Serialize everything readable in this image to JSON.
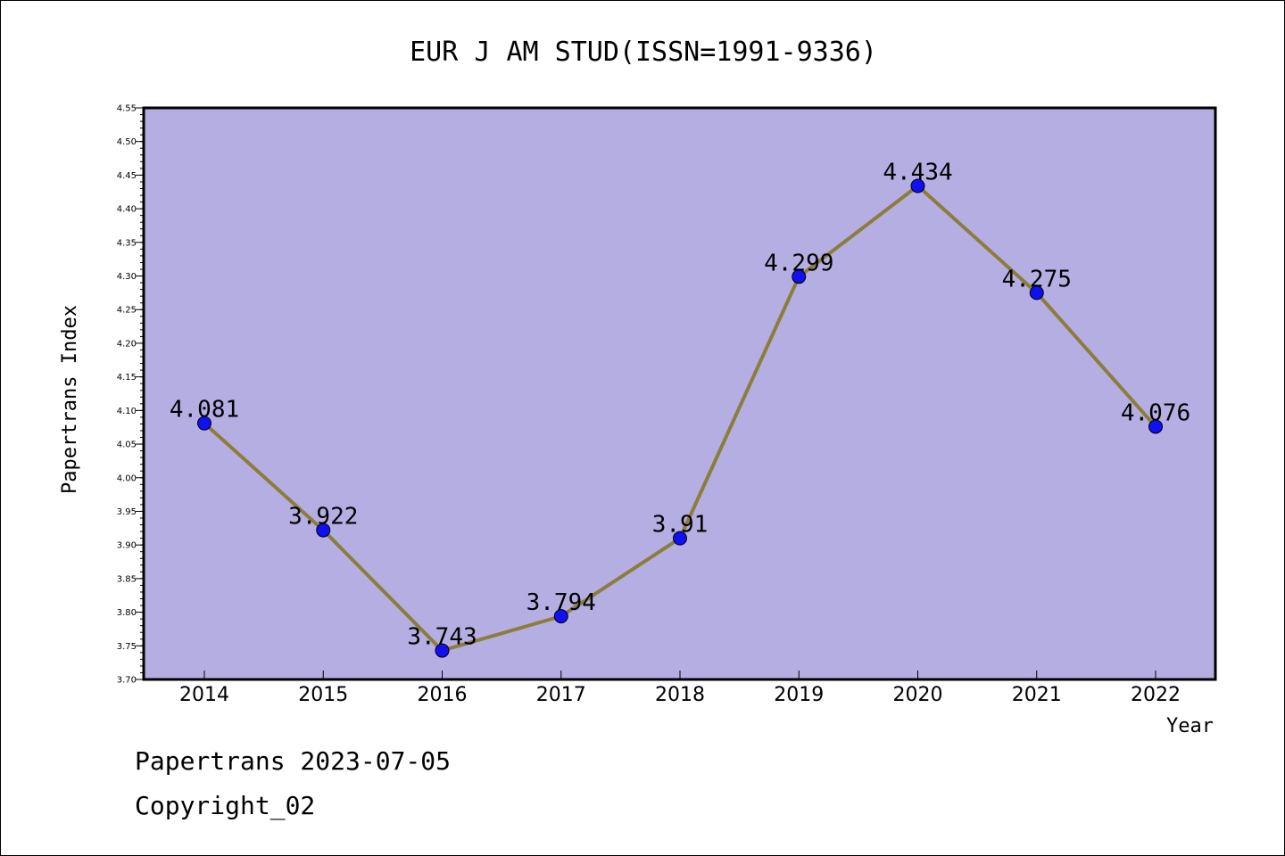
{
  "chart_data": {
    "type": "line",
    "title": "EUR J AM STUD(ISSN=1991-9336)",
    "xlabel": "Year",
    "ylabel": "Papertrans Index",
    "categories": [
      "2014",
      "2015",
      "2016",
      "2017",
      "2018",
      "2019",
      "2020",
      "2021",
      "2022"
    ],
    "series": [
      {
        "values": [
          4.081,
          3.922,
          3.743,
          3.794,
          3.91,
          4.299,
          4.434,
          4.275,
          4.076
        ],
        "data_labels": [
          "4.081",
          "3.922",
          "3.743",
          "3.794",
          "3.91",
          "4.299",
          "4.434",
          "4.275",
          "4.076"
        ]
      }
    ],
    "ylim": [
      3.7,
      4.55
    ],
    "y_ticks": [
      "3.70",
      "3.75",
      "3.80",
      "3.85",
      "3.90",
      "3.95",
      "4.00",
      "4.05",
      "4.10",
      "4.15",
      "4.20",
      "4.25",
      "4.30",
      "4.35",
      "4.40",
      "4.45",
      "4.50",
      "4.55"
    ],
    "grid": false,
    "legend": "none",
    "colors": {
      "plot_background": "#b5aee2",
      "line": "#8b7d3a",
      "marker": "#1010f0",
      "frame": "#000000"
    }
  },
  "footer": {
    "line1": "Papertrans 2023-07-05",
    "line2": "Copyright_02"
  }
}
